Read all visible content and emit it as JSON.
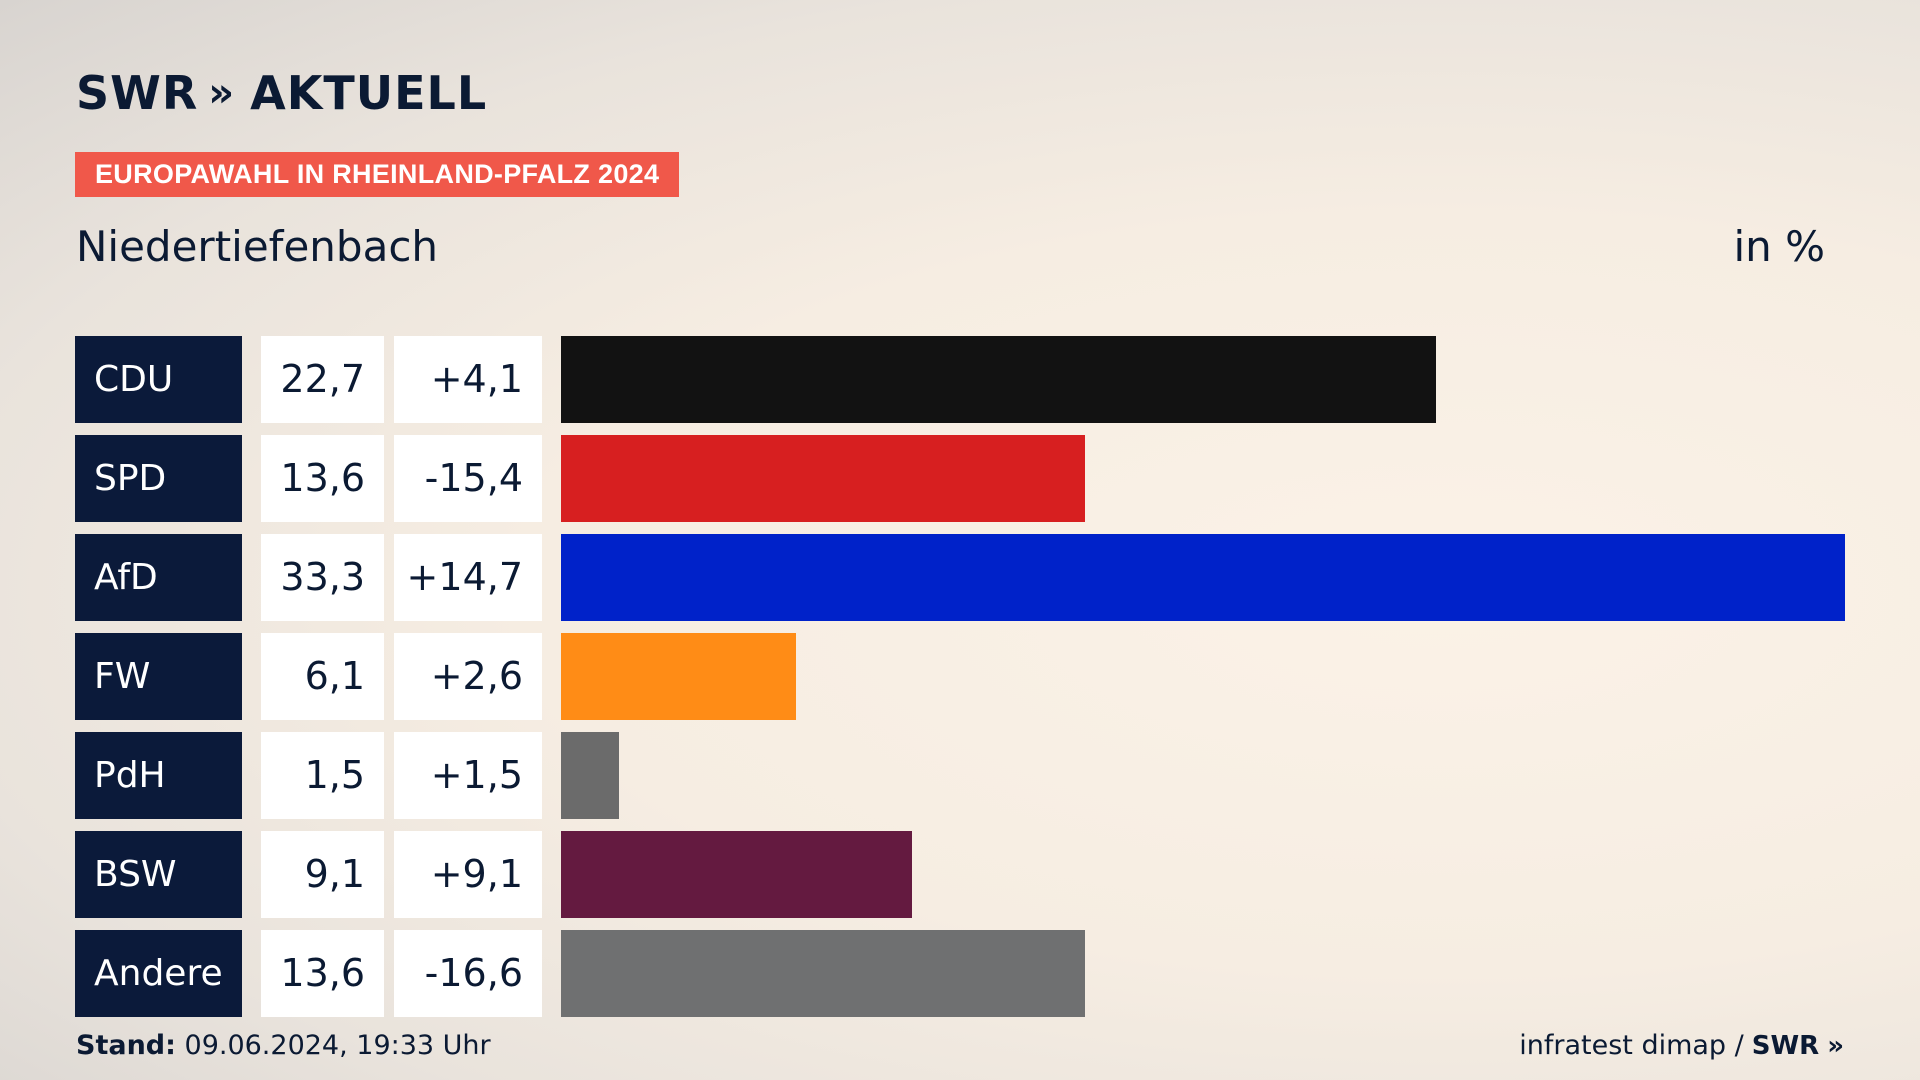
{
  "header": {
    "logo_brand": "SWR",
    "logo_chevrons": "»",
    "logo_title": "AKTUELL",
    "tag": "EUROPAWAHL IN RHEINLAND-PFALZ 2024",
    "place": "Niedertiefenbach",
    "unit": "in %"
  },
  "footer": {
    "stand_label": "Stand:",
    "stand_value": "09.06.2024, 19:33 Uhr",
    "source": "infratest dimap /",
    "source_brand": "SWR",
    "source_chevrons": "»"
  },
  "rows": [
    {
      "party": "CDU",
      "value": "22,7",
      "diff": "+4,1"
    },
    {
      "party": "SPD",
      "value": "13,6",
      "diff": "-15,4"
    },
    {
      "party": "AfD",
      "value": "33,3",
      "diff": "+14,7"
    },
    {
      "party": "FW",
      "value": "6,1",
      "diff": "+2,6"
    },
    {
      "party": "PdH",
      "value": "1,5",
      "diff": "+1,5"
    },
    {
      "party": "BSW",
      "value": "9,1",
      "diff": "+9,1"
    },
    {
      "party": "Andere",
      "value": "13,6",
      "diff": "-16,6"
    }
  ],
  "chart_data": {
    "type": "bar",
    "orientation": "horizontal",
    "title": "Niedertiefenbach",
    "ylabel": "in %",
    "categories": [
      "CDU",
      "SPD",
      "AfD",
      "FW",
      "PdH",
      "BSW",
      "Andere"
    ],
    "values": [
      22.7,
      13.6,
      33.3,
      6.1,
      1.5,
      9.1,
      13.6
    ],
    "diffs": [
      4.1,
      -15.4,
      14.7,
      2.6,
      1.5,
      9.1,
      -16.6
    ],
    "colors": [
      "#121212",
      "#d71f20",
      "#0022c9",
      "#ff8c16",
      "#6b6b6b",
      "#641a40",
      "#6f7071"
    ],
    "xlim": [
      0,
      33.3
    ]
  },
  "colors": {
    "accent_tag": "#f0584a",
    "party_label_bg": "#0b1a3a",
    "text": "#0b1a33"
  }
}
